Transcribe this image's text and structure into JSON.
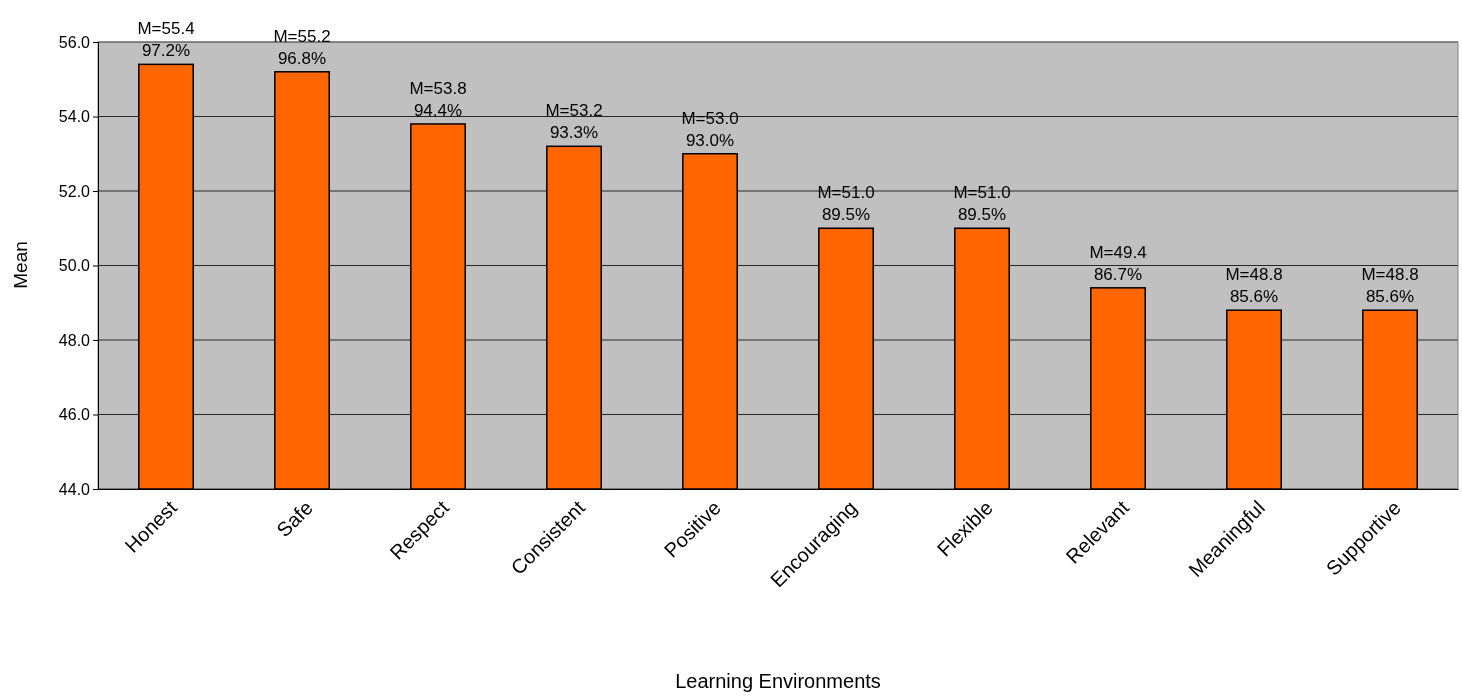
{
  "chart_data": {
    "type": "bar",
    "xlabel": "Learning Environments",
    "ylabel": "Mean",
    "categories": [
      "Honest",
      "Safe",
      "Respect",
      "Consistent",
      "Positive",
      "Encouraging",
      "Flexible",
      "Relevant",
      "Meaningful",
      "Supportive"
    ],
    "values": [
      55.4,
      55.2,
      53.8,
      53.2,
      53.0,
      51.0,
      51.0,
      49.4,
      48.8,
      48.8
    ],
    "value_labels": [
      "M=55.4\n97.2%",
      "M=55.2\n96.8%",
      "M=53.8\n94.4%",
      "M=53.2\n93.3%",
      "M=53.0\n93.0%",
      "M=51.0\n89.5%",
      "M=51.0\n89.5%",
      "M=49.4\n86.7%",
      "M=48.8\n85.6%",
      "M=48.8\n85.6%"
    ],
    "color": "#ff6600",
    "ylim": [
      44,
      56
    ],
    "yticks": [
      {
        "value": 44,
        "label": "44.0"
      },
      {
        "value": 46,
        "label": "46.0"
      },
      {
        "value": 48,
        "label": "48.0"
      },
      {
        "value": 50,
        "label": "50.0"
      },
      {
        "value": 52,
        "label": "52.0"
      },
      {
        "value": 54,
        "label": "54.0"
      },
      {
        "value": 56,
        "label": "56.0"
      }
    ],
    "grid": "y"
  }
}
